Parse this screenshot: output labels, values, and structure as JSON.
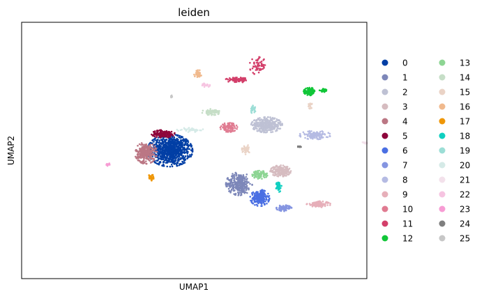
{
  "chart_data": {
    "type": "scatter",
    "title": "leiden",
    "xlabel": "UMAP1",
    "ylabel": "UMAP2",
    "xticks": "none",
    "yticks": "none",
    "grid": false,
    "legend_placement": "right",
    "legend_columns": 2,
    "clusters": [
      {
        "name": "0",
        "color": "#023fa5",
        "blobs": [
          {
            "cx": 4.3,
            "cy": 5.0,
            "rx": 0.65,
            "ry": 0.63,
            "n": 900
          }
        ]
      },
      {
        "name": "1",
        "color": "#7d87b9",
        "blobs": [
          {
            "cx": 6.3,
            "cy": 3.7,
            "rx": 0.38,
            "ry": 0.45,
            "n": 320
          }
        ]
      },
      {
        "name": "2",
        "color": "#bec1d4",
        "blobs": [
          {
            "cx": 7.1,
            "cy": 6.0,
            "rx": 0.45,
            "ry": 0.3,
            "n": 380
          }
        ]
      },
      {
        "name": "3",
        "color": "#d6bcc0",
        "blobs": [
          {
            "cx": 7.5,
            "cy": 4.2,
            "rx": 0.3,
            "ry": 0.22,
            "n": 200
          }
        ]
      },
      {
        "name": "4",
        "color": "#bb7784",
        "blobs": [
          {
            "cx": 3.6,
            "cy": 4.9,
            "rx": 0.32,
            "ry": 0.42,
            "n": 280
          }
        ]
      },
      {
        "name": "5",
        "color": "#8e063b",
        "blobs": [
          {
            "cx": 4.1,
            "cy": 5.65,
            "rx": 0.34,
            "ry": 0.15,
            "n": 150
          }
        ]
      },
      {
        "name": "6",
        "color": "#4a6fe3",
        "blobs": [
          {
            "cx": 6.9,
            "cy": 3.15,
            "rx": 0.28,
            "ry": 0.32,
            "n": 220
          }
        ]
      },
      {
        "name": "7",
        "color": "#8595e1",
        "blobs": [
          {
            "cx": 7.6,
            "cy": 2.75,
            "rx": 0.22,
            "ry": 0.12,
            "n": 90
          }
        ]
      },
      {
        "name": "8",
        "color": "#b5bbe3",
        "blobs": [
          {
            "cx": 8.5,
            "cy": 5.6,
            "rx": 0.45,
            "ry": 0.17,
            "n": 130
          }
        ]
      },
      {
        "name": "9",
        "color": "#e6afb9",
        "blobs": [
          {
            "cx": 8.6,
            "cy": 2.9,
            "rx": 0.35,
            "ry": 0.12,
            "n": 110
          }
        ]
      },
      {
        "name": "10",
        "color": "#e07b91",
        "blobs": [
          {
            "cx": 6.0,
            "cy": 5.9,
            "rx": 0.25,
            "ry": 0.18,
            "n": 110
          }
        ]
      },
      {
        "name": "11",
        "color": "#d33f6a",
        "blobs": [
          {
            "cx": 6.25,
            "cy": 7.75,
            "rx": 0.35,
            "ry": 0.1,
            "n": 90
          },
          {
            "cx": 6.85,
            "cy": 8.3,
            "rx": 0.25,
            "ry": 0.35,
            "n": 60
          }
        ]
      },
      {
        "name": "12",
        "color": "#11c638",
        "blobs": [
          {
            "cx": 8.35,
            "cy": 7.3,
            "rx": 0.18,
            "ry": 0.15,
            "n": 110
          },
          {
            "cx": 8.75,
            "cy": 7.35,
            "rx": 0.12,
            "ry": 0.07,
            "n": 40
          }
        ]
      },
      {
        "name": "13",
        "color": "#8dd593",
        "blobs": [
          {
            "cx": 6.9,
            "cy": 4.05,
            "rx": 0.22,
            "ry": 0.16,
            "n": 90
          }
        ]
      },
      {
        "name": "14",
        "color": "#c6dec7",
        "blobs": [
          {
            "cx": 5.5,
            "cy": 6.5,
            "rx": 0.28,
            "ry": 0.12,
            "n": 70
          }
        ]
      },
      {
        "name": "15",
        "color": "#ead3c6",
        "blobs": [
          {
            "cx": 6.5,
            "cy": 5.05,
            "rx": 0.12,
            "ry": 0.2,
            "n": 35
          },
          {
            "cx": 8.35,
            "cy": 6.75,
            "rx": 0.08,
            "ry": 0.12,
            "n": 20
          }
        ]
      },
      {
        "name": "16",
        "color": "#f0b98d",
        "blobs": [
          {
            "cx": 5.1,
            "cy": 8.0,
            "rx": 0.12,
            "ry": 0.15,
            "n": 45
          }
        ]
      },
      {
        "name": "17",
        "color": "#ef9708",
        "blobs": [
          {
            "cx": 3.75,
            "cy": 3.95,
            "rx": 0.08,
            "ry": 0.13,
            "n": 45
          }
        ]
      },
      {
        "name": "18",
        "color": "#0fcfc0",
        "blobs": [
          {
            "cx": 7.45,
            "cy": 3.6,
            "rx": 0.08,
            "ry": 0.22,
            "n": 45
          }
        ]
      },
      {
        "name": "19",
        "color": "#9cded6",
        "blobs": [
          {
            "cx": 6.7,
            "cy": 6.6,
            "rx": 0.08,
            "ry": 0.15,
            "n": 25
          }
        ]
      },
      {
        "name": "20",
        "color": "#d5eae7",
        "blobs": [
          {
            "cx": 4.9,
            "cy": 5.8,
            "rx": 0.4,
            "ry": 0.1,
            "n": 40
          }
        ]
      },
      {
        "name": "21",
        "color": "#f3e1eb",
        "blobs": [
          {
            "cx": 9.95,
            "cy": 5.3,
            "rx": 0.08,
            "ry": 0.05,
            "n": 15
          }
        ]
      },
      {
        "name": "22",
        "color": "#f6c4e1",
        "blobs": [
          {
            "cx": 5.35,
            "cy": 7.55,
            "rx": 0.12,
            "ry": 0.08,
            "n": 20
          }
        ]
      },
      {
        "name": "23",
        "color": "#f79cd4",
        "blobs": [
          {
            "cx": 2.5,
            "cy": 4.45,
            "rx": 0.06,
            "ry": 0.06,
            "n": 15
          }
        ]
      },
      {
        "name": "24",
        "color": "#7f7f7f",
        "blobs": [
          {
            "cx": 8.05,
            "cy": 5.15,
            "rx": 0.05,
            "ry": 0.04,
            "n": 12
          }
        ]
      },
      {
        "name": "25",
        "color": "#c7c7c7",
        "blobs": [
          {
            "cx": 4.35,
            "cy": 7.1,
            "rx": 0.04,
            "ry": 0.05,
            "n": 8
          }
        ]
      }
    ]
  }
}
